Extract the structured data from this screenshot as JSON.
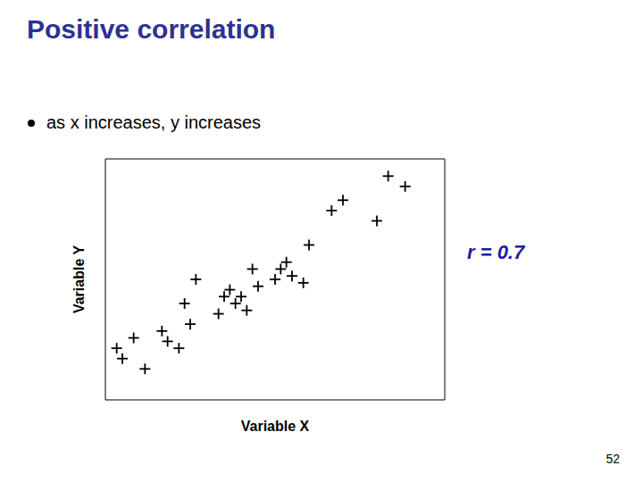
{
  "chart_data": {
    "type": "scatter",
    "title": "Positive correlation",
    "annotations": [
      "as x increases, y increases",
      "r = 0.7",
      "52"
    ],
    "xlabel": "Variable X",
    "ylabel": "Variable Y",
    "x": [
      1.2,
      1.5,
      1.3,
      1.7,
      2.0,
      2.1,
      2.3,
      2.4,
      2.5,
      2.6,
      3.0,
      3.1,
      3.2,
      3.3,
      3.4,
      3.5,
      3.6,
      3.7,
      4.0,
      4.1,
      4.2,
      4.3,
      4.5,
      4.6,
      5.0,
      5.2,
      5.8,
      6.0,
      6.3
    ],
    "values": [
      1.5,
      1.8,
      1.2,
      0.9,
      2.0,
      1.7,
      1.5,
      2.8,
      2.2,
      3.5,
      2.5,
      3.0,
      3.2,
      2.8,
      3.0,
      2.6,
      3.8,
      3.3,
      3.5,
      3.8,
      4.0,
      3.6,
      3.4,
      4.5,
      5.5,
      5.8,
      5.2,
      6.5,
      6.2
    ],
    "xlim": [
      1,
      7
    ],
    "ylim": [
      0,
      7
    ],
    "color": "#000000",
    "marker": "plus",
    "tick_labels": false,
    "grid": false
  }
}
